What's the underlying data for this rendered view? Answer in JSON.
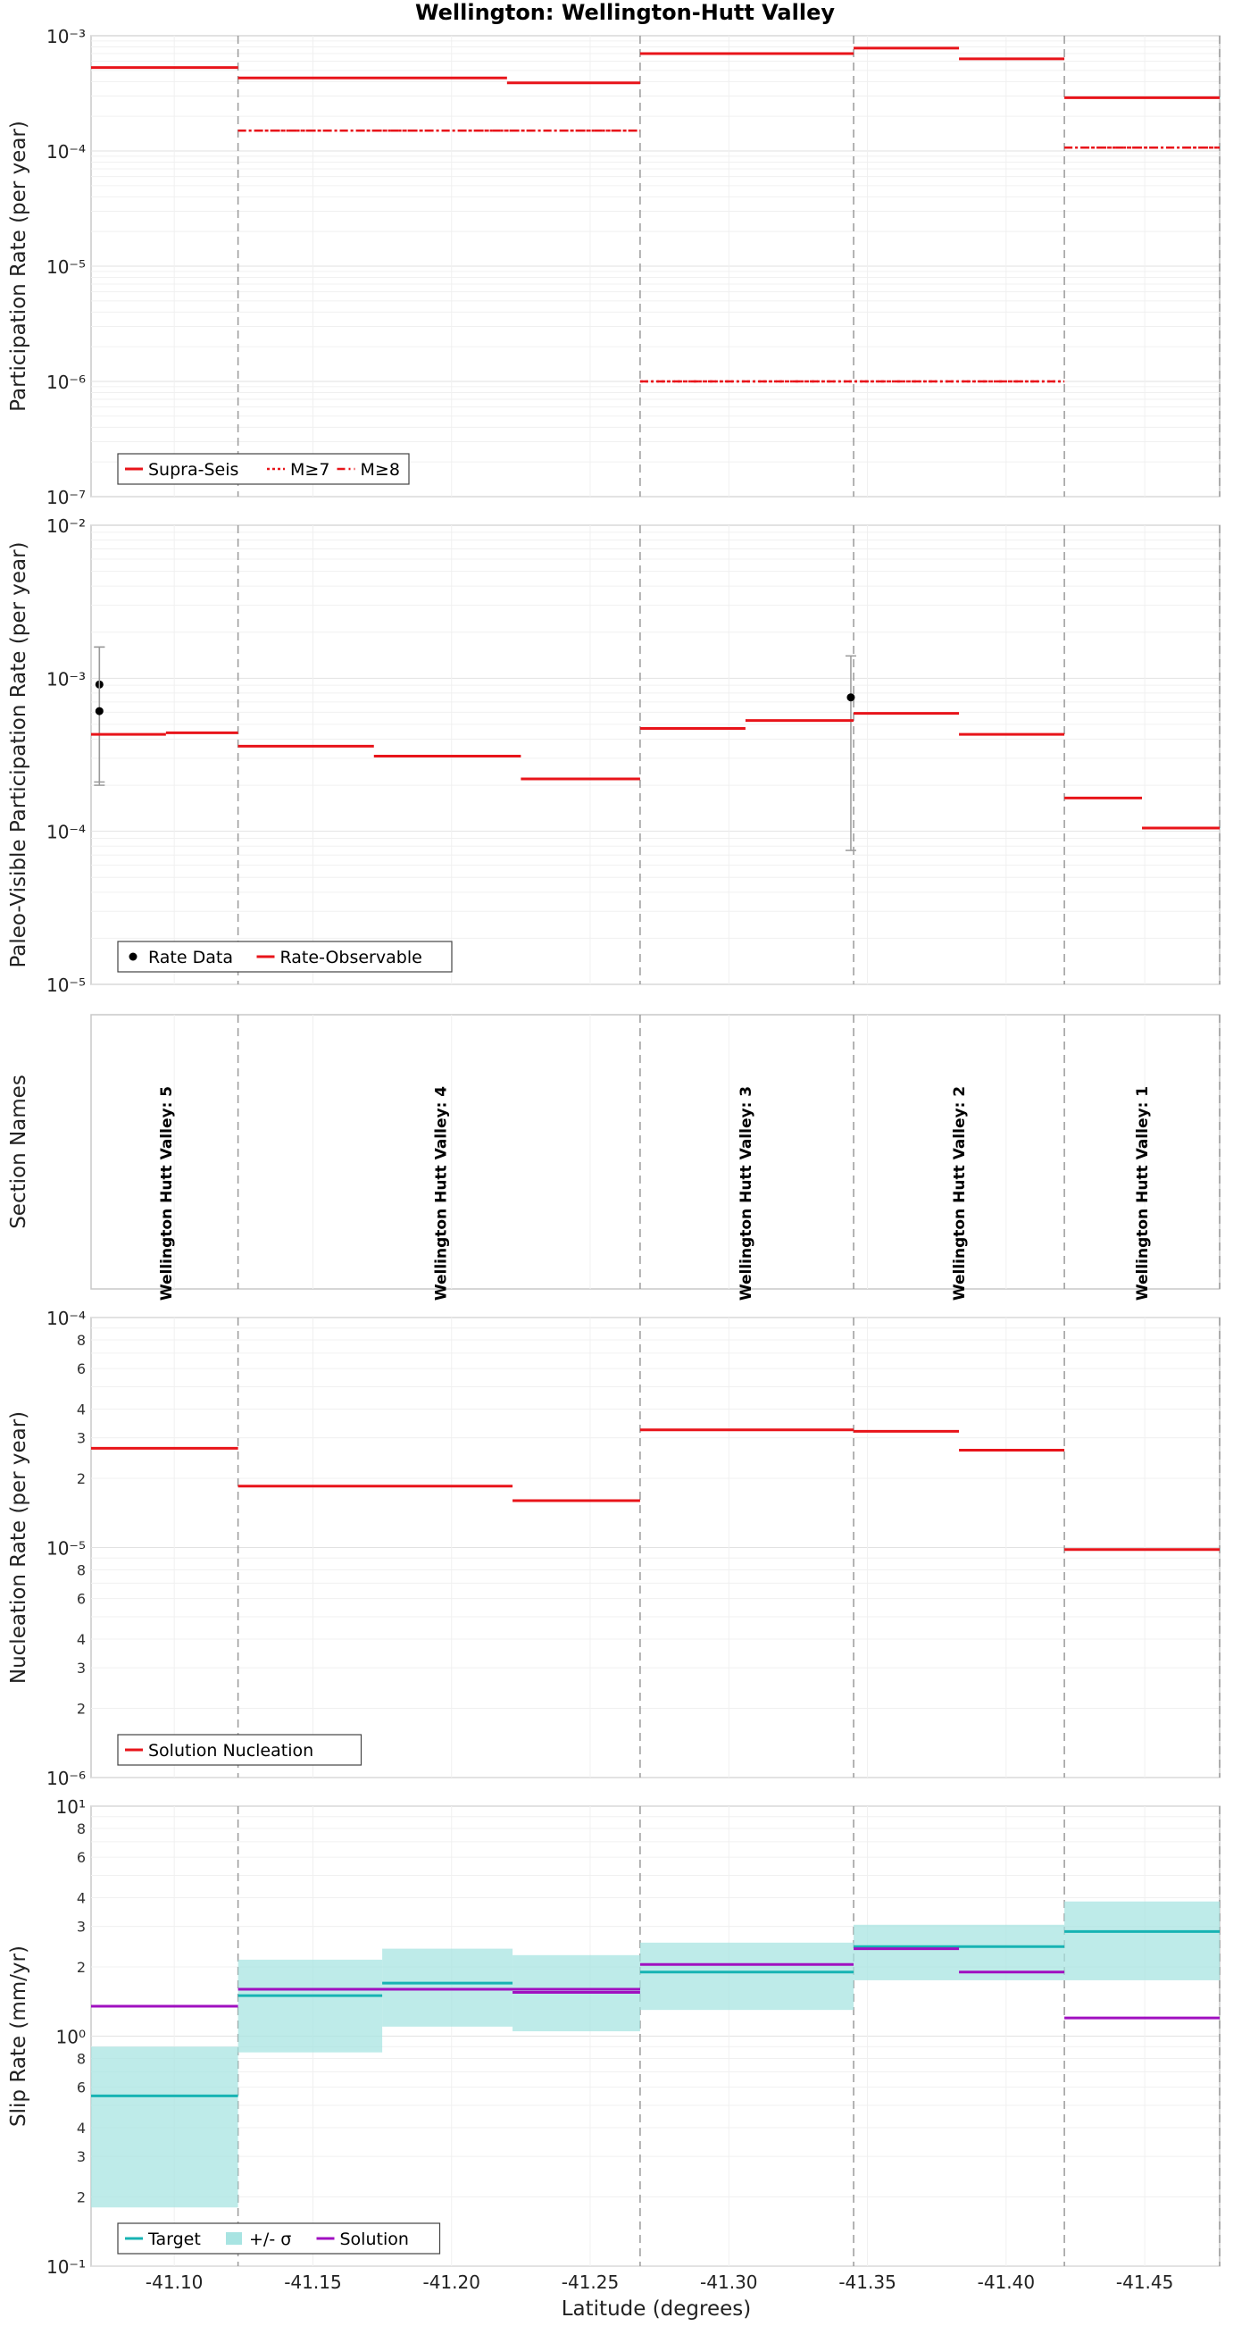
{
  "title": "Wellington: Wellington-Hutt Valley",
  "xlabel": "Latitude (degrees)",
  "colors": {
    "red": "#e8141a",
    "teal": "#17b3b3",
    "band": "#a8e4e2",
    "purple": "#a010c0",
    "gray": "#9a9a9a",
    "black": "#000000"
  },
  "section_boundaries": [
    -41.123,
    -41.268,
    -41.345,
    -41.421
  ],
  "chart_data": [
    {
      "type": "line",
      "name": "participation",
      "ylabel": "Participation Rate (per year)",
      "yscale": "log",
      "ylim": [
        1e-07,
        0.001
      ],
      "xlim": [
        -41.07,
        -41.477
      ],
      "legend": "bottom-left",
      "series": [
        {
          "name": "Supra-Seis",
          "style": "solid",
          "segments": [
            [
              -41.07,
              -41.123,
              0.00053
            ],
            [
              -41.123,
              -41.22,
              0.00043
            ],
            [
              -41.22,
              -41.268,
              0.00039
            ],
            [
              -41.268,
              -41.345,
              0.0007
            ],
            [
              -41.345,
              -41.383,
              0.00078
            ],
            [
              -41.383,
              -41.421,
              0.00063
            ],
            [
              -41.421,
              -41.477,
              0.00029
            ]
          ]
        },
        {
          "name": "M≥7",
          "style": "dotted",
          "segments": [
            [
              -41.123,
              -41.268,
              0.00015
            ],
            [
              -41.268,
              -41.421,
              1e-06
            ],
            [
              -41.421,
              -41.477,
              0.000107
            ]
          ]
        },
        {
          "name": "M≥8",
          "style": "dashdot",
          "segments": [
            [
              -41.123,
              -41.268,
              0.00015
            ],
            [
              -41.268,
              -41.421,
              1e-06
            ],
            [
              -41.421,
              -41.477,
              0.000107
            ]
          ]
        }
      ]
    },
    {
      "type": "line",
      "name": "paleo",
      "ylabel": "Paleo-Visible Participation Rate (per year)",
      "yscale": "log",
      "ylim": [
        1e-05,
        0.01
      ],
      "xlim": [
        -41.07,
        -41.477
      ],
      "legend": "bottom-left",
      "series": [
        {
          "name": "Rate Data",
          "style": "points",
          "points": [
            [
              -41.073,
              0.00091,
              0.00021,
              0.0016
            ],
            [
              -41.073,
              0.00061,
              0.0002,
              0.0016
            ],
            [
              -41.344,
              0.00075,
              7.5e-05,
              0.0014
            ]
          ]
        },
        {
          "name": "Rate-Observable",
          "style": "solid",
          "segments": [
            [
              -41.07,
              -41.097,
              0.00043
            ],
            [
              -41.097,
              -41.123,
              0.00044
            ],
            [
              -41.123,
              -41.172,
              0.00036
            ],
            [
              -41.172,
              -41.225,
              0.00031
            ],
            [
              -41.225,
              -41.268,
              0.00022
            ],
            [
              -41.268,
              -41.306,
              0.00047
            ],
            [
              -41.306,
              -41.345,
              0.00053
            ],
            [
              -41.345,
              -41.383,
              0.00059
            ],
            [
              -41.383,
              -41.421,
              0.00043
            ],
            [
              -41.421,
              -41.449,
              0.000165
            ],
            [
              -41.449,
              -41.477,
              0.000105
            ]
          ]
        }
      ]
    },
    {
      "type": "table",
      "name": "sections",
      "ylabel": "Section Names",
      "xlim": [
        -41.07,
        -41.477
      ],
      "sections": [
        {
          "label": "Wellington Hutt Valley: 5",
          "x": -41.097
        },
        {
          "label": "Wellington Hutt Valley: 4",
          "x": -41.196
        },
        {
          "label": "Wellington Hutt Valley: 3",
          "x": -41.306
        },
        {
          "label": "Wellington Hutt Valley: 2",
          "x": -41.383
        },
        {
          "label": "Wellington Hutt Valley: 1",
          "x": -41.449
        }
      ]
    },
    {
      "type": "line",
      "name": "nucleation",
      "ylabel": "Nucleation Rate (per year)",
      "yscale": "log",
      "ylim": [
        1e-06,
        0.0001
      ],
      "xlim": [
        -41.07,
        -41.477
      ],
      "legend": "bottom-left",
      "series": [
        {
          "name": "Solution Nucleation",
          "style": "solid",
          "segments": [
            [
              -41.07,
              -41.123,
              2.7e-05
            ],
            [
              -41.123,
              -41.222,
              1.85e-05
            ],
            [
              -41.222,
              -41.268,
              1.6e-05
            ],
            [
              -41.268,
              -41.345,
              3.25e-05
            ],
            [
              -41.345,
              -41.383,
              3.2e-05
            ],
            [
              -41.383,
              -41.421,
              2.65e-05
            ],
            [
              -41.421,
              -41.477,
              9.8e-06
            ]
          ]
        }
      ]
    },
    {
      "type": "area",
      "name": "slip",
      "ylabel": "Slip Rate (mm/yr)",
      "yscale": "log",
      "ylim": [
        0.1,
        10
      ],
      "xlim": [
        -41.07,
        -41.477
      ],
      "legend": "bottom-left",
      "series": [
        {
          "name": "Target",
          "style": "solid",
          "segments": [
            [
              -41.07,
              -41.123,
              0.55
            ],
            [
              -41.123,
              -41.175,
              1.5
            ],
            [
              -41.175,
              -41.222,
              1.7
            ],
            [
              -41.222,
              -41.268,
              1.6
            ],
            [
              -41.268,
              -41.345,
              1.9
            ],
            [
              -41.345,
              -41.421,
              2.45
            ],
            [
              -41.421,
              -41.477,
              2.85
            ]
          ]
        },
        {
          "name": "+/- σ",
          "style": "band",
          "bands": [
            [
              -41.07,
              -41.123,
              0.18,
              0.9
            ],
            [
              -41.123,
              -41.175,
              0.85,
              2.15
            ],
            [
              -41.175,
              -41.222,
              1.1,
              2.4
            ],
            [
              -41.222,
              -41.268,
              1.05,
              2.25
            ],
            [
              -41.268,
              -41.345,
              1.3,
              2.55
            ],
            [
              -41.345,
              -41.421,
              1.75,
              3.05
            ],
            [
              -41.421,
              -41.477,
              1.75,
              3.85
            ]
          ]
        },
        {
          "name": "Solution",
          "style": "solid",
          "segments": [
            [
              -41.07,
              -41.123,
              1.35
            ],
            [
              -41.123,
              -41.268,
              1.6
            ],
            [
              -41.222,
              -41.268,
              1.55
            ],
            [
              -41.268,
              -41.345,
              2.05
            ],
            [
              -41.345,
              -41.383,
              2.4
            ],
            [
              -41.383,
              -41.421,
              1.9
            ],
            [
              -41.421,
              -41.477,
              1.2
            ]
          ]
        }
      ]
    }
  ],
  "xticks": [
    -41.1,
    -41.15,
    -41.2,
    -41.25,
    -41.3,
    -41.35,
    -41.4,
    -41.45
  ]
}
